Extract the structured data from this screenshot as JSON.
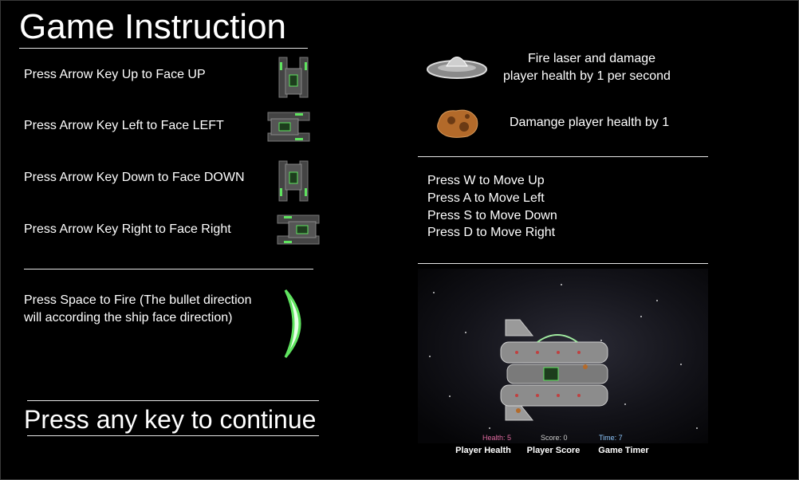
{
  "title": "Game Instruction",
  "controls": {
    "face_up": "Press Arrow Key Up to Face UP",
    "face_left": "Press Arrow Key Left to Face LEFT",
    "face_down": "Press Arrow Key Down to Face DOWN",
    "face_right": "Press Arrow Key Right to Face Right",
    "fire_line1": "Press Space to Fire (The bullet direction",
    "fire_line2": "will according the ship face direction)"
  },
  "enemies": {
    "ufo_line1": "Fire laser and damage",
    "ufo_line2": "player health by 1 per second",
    "asteroid": "Damange player health by 1"
  },
  "movement": [
    "Press W to Move Up",
    "Press A to Move Left",
    "Press S to Move Down",
    "Press D to Move Right"
  ],
  "continue_prompt": "Press any key to continue",
  "preview": {
    "hud_health": "Health: 5",
    "hud_score": "Score: 0",
    "hud_time": "Time: 7",
    "caption_health": "Player Health",
    "caption_score": "Player Score",
    "caption_timer": "Game Timer",
    "colors": {
      "health": "#e06aa0",
      "score": "#cccccc",
      "time": "#8fc8ff"
    }
  },
  "colors": {
    "background": "#000000",
    "text": "#ffffff",
    "ship_accent": "#5fe35f"
  }
}
